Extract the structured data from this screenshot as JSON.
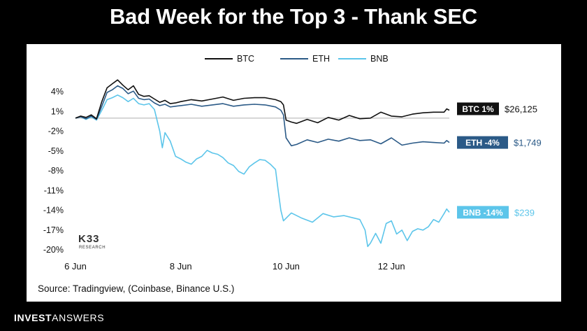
{
  "header": {
    "title": "Bad Week for the Top 3 - Thank SEC"
  },
  "footer": {
    "source": "Source: Tradingview, (Coinbase, Binance U.S.)",
    "brand_bold": "INVEST",
    "brand_light": "ANSWERS"
  },
  "watermark": {
    "logo": "K33",
    "sub": "RESEARCH"
  },
  "colors": {
    "btc": "#111111",
    "eth": "#2b5a87",
    "bnb": "#5cc5ea",
    "zero_line": "#c8c8c8"
  },
  "chart_data": {
    "type": "line",
    "title": "Bad Week for the Top 3 - Thank SEC",
    "xlabel": "",
    "ylabel": "",
    "x_ticks": [
      {
        "x": 0,
        "label": "6 Jun"
      },
      {
        "x": 2,
        "label": "8 Jun"
      },
      {
        "x": 4,
        "label": "10 Jun"
      },
      {
        "x": 6,
        "label": "12 Jun"
      }
    ],
    "xlim": [
      0,
      7.1
    ],
    "ylim": [
      -20,
      5.5
    ],
    "y_ticks": [
      4,
      1,
      -2,
      -5,
      -8,
      -11,
      -14,
      -17,
      -20
    ],
    "y_tick_labels": [
      "4%",
      "1%",
      "-2%",
      "-5%",
      "-8%",
      "-11%",
      "-14%",
      "-17%",
      "-20%"
    ],
    "legend": {
      "placement": "top-center"
    },
    "series": [
      {
        "name": "BTC",
        "end_label": "BTC 1%",
        "end_value": "$26,125",
        "points": [
          [
            0,
            0
          ],
          [
            0.1,
            0.3
          ],
          [
            0.2,
            0.1
          ],
          [
            0.3,
            0.5
          ],
          [
            0.4,
            -0.1
          ],
          [
            0.5,
            2.5
          ],
          [
            0.6,
            4.6
          ],
          [
            0.7,
            5.2
          ],
          [
            0.8,
            5.8
          ],
          [
            0.9,
            5
          ],
          [
            1.0,
            4.3
          ],
          [
            1.1,
            4.9
          ],
          [
            1.2,
            3.6
          ],
          [
            1.3,
            3.3
          ],
          [
            1.4,
            3.4
          ],
          [
            1.5,
            2.9
          ],
          [
            1.6,
            2.4
          ],
          [
            1.7,
            2.7
          ],
          [
            1.8,
            2.2
          ],
          [
            1.9,
            2.3
          ],
          [
            2.0,
            2.5
          ],
          [
            2.2,
            2.8
          ],
          [
            2.4,
            2.6
          ],
          [
            2.6,
            2.9
          ],
          [
            2.8,
            3.2
          ],
          [
            3.0,
            2.7
          ],
          [
            3.2,
            3.0
          ],
          [
            3.4,
            3.1
          ],
          [
            3.6,
            3.1
          ],
          [
            3.8,
            2.8
          ],
          [
            3.9,
            2.5
          ],
          [
            3.95,
            2.0
          ],
          [
            4.0,
            -0.3
          ],
          [
            4.1,
            -0.6
          ],
          [
            4.2,
            -0.8
          ],
          [
            4.4,
            -0.2
          ],
          [
            4.6,
            -0.7
          ],
          [
            4.8,
            0.1
          ],
          [
            5.0,
            -0.3
          ],
          [
            5.2,
            0.4
          ],
          [
            5.4,
            -0.1
          ],
          [
            5.6,
            0.0
          ],
          [
            5.8,
            0.9
          ],
          [
            6.0,
            0.3
          ],
          [
            6.2,
            0.2
          ],
          [
            6.4,
            0.6
          ],
          [
            6.6,
            0.8
          ],
          [
            6.8,
            0.9
          ],
          [
            7.0,
            0.9
          ],
          [
            7.05,
            1.4
          ],
          [
            7.1,
            1.2
          ]
        ]
      },
      {
        "name": "ETH",
        "end_label": "ETH -4%",
        "end_value": "$1,749",
        "points": [
          [
            0,
            0
          ],
          [
            0.1,
            0.2
          ],
          [
            0.2,
            -0.1
          ],
          [
            0.3,
            0.3
          ],
          [
            0.4,
            -0.2
          ],
          [
            0.5,
            1.8
          ],
          [
            0.6,
            3.9
          ],
          [
            0.7,
            4.3
          ],
          [
            0.8,
            4.9
          ],
          [
            0.9,
            4.5
          ],
          [
            1.0,
            3.7
          ],
          [
            1.1,
            4.1
          ],
          [
            1.2,
            3.0
          ],
          [
            1.3,
            2.8
          ],
          [
            1.4,
            2.9
          ],
          [
            1.5,
            2.3
          ],
          [
            1.6,
            1.9
          ],
          [
            1.7,
            2.1
          ],
          [
            1.8,
            1.7
          ],
          [
            1.9,
            1.8
          ],
          [
            2.0,
            1.9
          ],
          [
            2.2,
            2.1
          ],
          [
            2.4,
            1.8
          ],
          [
            2.6,
            2.0
          ],
          [
            2.8,
            2.2
          ],
          [
            3.0,
            1.8
          ],
          [
            3.2,
            2.0
          ],
          [
            3.4,
            2.1
          ],
          [
            3.6,
            2.0
          ],
          [
            3.8,
            1.7
          ],
          [
            3.9,
            1.2
          ],
          [
            3.95,
            0.5
          ],
          [
            4.0,
            -3.0
          ],
          [
            4.1,
            -4.2
          ],
          [
            4.2,
            -4.0
          ],
          [
            4.4,
            -3.3
          ],
          [
            4.6,
            -3.7
          ],
          [
            4.8,
            -3.2
          ],
          [
            5.0,
            -3.5
          ],
          [
            5.2,
            -3.0
          ],
          [
            5.4,
            -3.4
          ],
          [
            5.6,
            -3.3
          ],
          [
            5.8,
            -3.9
          ],
          [
            6.0,
            -3.0
          ],
          [
            6.2,
            -4.1
          ],
          [
            6.4,
            -3.8
          ],
          [
            6.6,
            -3.6
          ],
          [
            6.8,
            -3.7
          ],
          [
            7.0,
            -3.8
          ],
          [
            7.05,
            -3.4
          ],
          [
            7.1,
            -3.7
          ]
        ]
      },
      {
        "name": "BNB",
        "end_label": "BNB -14%",
        "end_value": "$239",
        "points": [
          [
            0,
            0
          ],
          [
            0.1,
            0.2
          ],
          [
            0.2,
            -0.2
          ],
          [
            0.3,
            0.2
          ],
          [
            0.4,
            -0.3
          ],
          [
            0.5,
            1.2
          ],
          [
            0.6,
            2.8
          ],
          [
            0.7,
            3.1
          ],
          [
            0.8,
            3.5
          ],
          [
            0.9,
            3.1
          ],
          [
            1.0,
            2.5
          ],
          [
            1.1,
            3.0
          ],
          [
            1.2,
            2.2
          ],
          [
            1.3,
            2.0
          ],
          [
            1.4,
            2.2
          ],
          [
            1.5,
            1.3
          ],
          [
            1.6,
            -2.0
          ],
          [
            1.65,
            -4.5
          ],
          [
            1.7,
            -2.2
          ],
          [
            1.8,
            -3.5
          ],
          [
            1.9,
            -5.8
          ],
          [
            2.0,
            -6.2
          ],
          [
            2.1,
            -6.7
          ],
          [
            2.2,
            -7.0
          ],
          [
            2.3,
            -6.2
          ],
          [
            2.4,
            -5.8
          ],
          [
            2.5,
            -4.9
          ],
          [
            2.6,
            -5.3
          ],
          [
            2.7,
            -5.5
          ],
          [
            2.8,
            -6.0
          ],
          [
            2.9,
            -6.8
          ],
          [
            3.0,
            -7.2
          ],
          [
            3.1,
            -8.1
          ],
          [
            3.2,
            -8.5
          ],
          [
            3.3,
            -7.4
          ],
          [
            3.4,
            -6.8
          ],
          [
            3.5,
            -6.3
          ],
          [
            3.6,
            -6.4
          ],
          [
            3.7,
            -7.0
          ],
          [
            3.8,
            -7.8
          ],
          [
            3.85,
            -11.0
          ],
          [
            3.9,
            -14.0
          ],
          [
            3.95,
            -15.6
          ],
          [
            4.1,
            -14.4
          ],
          [
            4.3,
            -15.2
          ],
          [
            4.5,
            -15.8
          ],
          [
            4.7,
            -14.5
          ],
          [
            4.9,
            -15.0
          ],
          [
            5.1,
            -14.8
          ],
          [
            5.3,
            -15.2
          ],
          [
            5.4,
            -15.4
          ],
          [
            5.5,
            -17.0
          ],
          [
            5.55,
            -19.5
          ],
          [
            5.6,
            -19.0
          ],
          [
            5.7,
            -17.5
          ],
          [
            5.8,
            -19.0
          ],
          [
            5.9,
            -16.0
          ],
          [
            6.0,
            -15.6
          ],
          [
            6.1,
            -17.6
          ],
          [
            6.2,
            -17.0
          ],
          [
            6.3,
            -18.6
          ],
          [
            6.4,
            -17.2
          ],
          [
            6.5,
            -16.8
          ],
          [
            6.6,
            -17.0
          ],
          [
            6.7,
            -16.5
          ],
          [
            6.8,
            -15.4
          ],
          [
            6.9,
            -15.8
          ],
          [
            7.0,
            -14.5
          ],
          [
            7.05,
            -13.8
          ],
          [
            7.1,
            -14.3
          ]
        ]
      }
    ]
  }
}
